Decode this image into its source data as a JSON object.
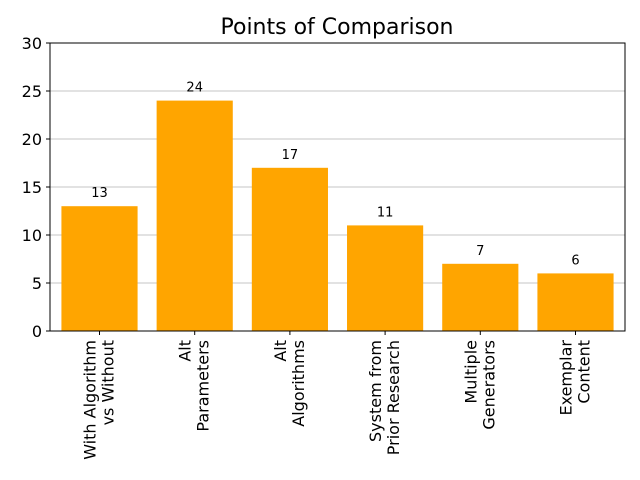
{
  "chart_data": {
    "type": "bar",
    "title": "Points of Comparison",
    "xlabel": "",
    "ylabel": "",
    "categories": [
      [
        "With Algorithm",
        "vs Without"
      ],
      [
        "Alt",
        "Parameters"
      ],
      [
        "Alt",
        "Algorithms"
      ],
      [
        "System from",
        "Prior Research"
      ],
      [
        "Multiple",
        "Generators"
      ],
      [
        "Exemplar",
        "Content"
      ]
    ],
    "values": [
      13,
      24,
      17,
      11,
      7,
      6
    ],
    "data_labels": [
      "13",
      "24",
      "17",
      "11",
      "7",
      "6"
    ],
    "ylim": [
      0,
      30
    ],
    "yticks": [
      0,
      5,
      10,
      15,
      20,
      25,
      30
    ],
    "ytick_labels": [
      "0",
      "5",
      "10",
      "15",
      "20",
      "25",
      "30"
    ],
    "grid": "y",
    "bar_color": "#FFA500"
  }
}
